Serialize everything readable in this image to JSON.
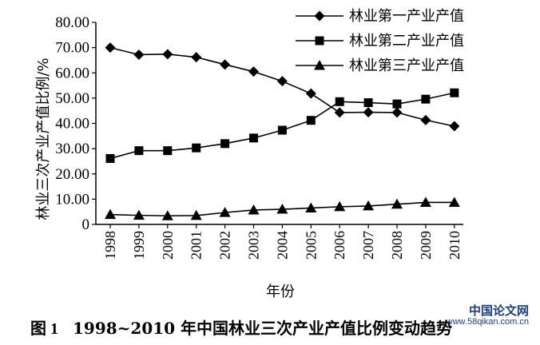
{
  "caption": {
    "label": "图 1",
    "text": "1998~2010 年中国林业三次产业产值比例变动趋势"
  },
  "watermark": {
    "text": "中国论文网",
    "url": "www.58qikan.com.cn"
  },
  "chart_data": {
    "type": "line",
    "xlabel": "年份",
    "ylabel": "林业三次产业产值比例/%",
    "ylim": [
      0,
      80
    ],
    "yticks": [
      "0",
      "10.00",
      "20.00",
      "30.00",
      "40.00",
      "50.00",
      "60.00",
      "70.00",
      "80.00"
    ],
    "categories": [
      "1998",
      "1999",
      "2000",
      "2001",
      "2002",
      "2003",
      "2004",
      "2005",
      "2006",
      "2007",
      "2008",
      "2009",
      "2010"
    ],
    "legend_position": "top-right",
    "grid": false,
    "series": [
      {
        "name": "林业第一产业产值",
        "marker": "diamond",
        "values": [
          70.0,
          67.2,
          67.4,
          66.2,
          63.3,
          60.5,
          56.7,
          51.8,
          44.3,
          44.4,
          44.3,
          41.3,
          38.9
        ]
      },
      {
        "name": "林业第二产业产值",
        "marker": "square",
        "values": [
          26.1,
          29.2,
          29.2,
          30.3,
          32.0,
          34.2,
          37.3,
          41.2,
          48.6,
          48.2,
          47.7,
          49.6,
          52.1
        ]
      },
      {
        "name": "林业第三产业产值",
        "marker": "triangle",
        "values": [
          3.9,
          3.6,
          3.4,
          3.5,
          4.7,
          5.7,
          6.0,
          6.5,
          7.0,
          7.3,
          8.0,
          8.7,
          8.7
        ]
      }
    ]
  }
}
